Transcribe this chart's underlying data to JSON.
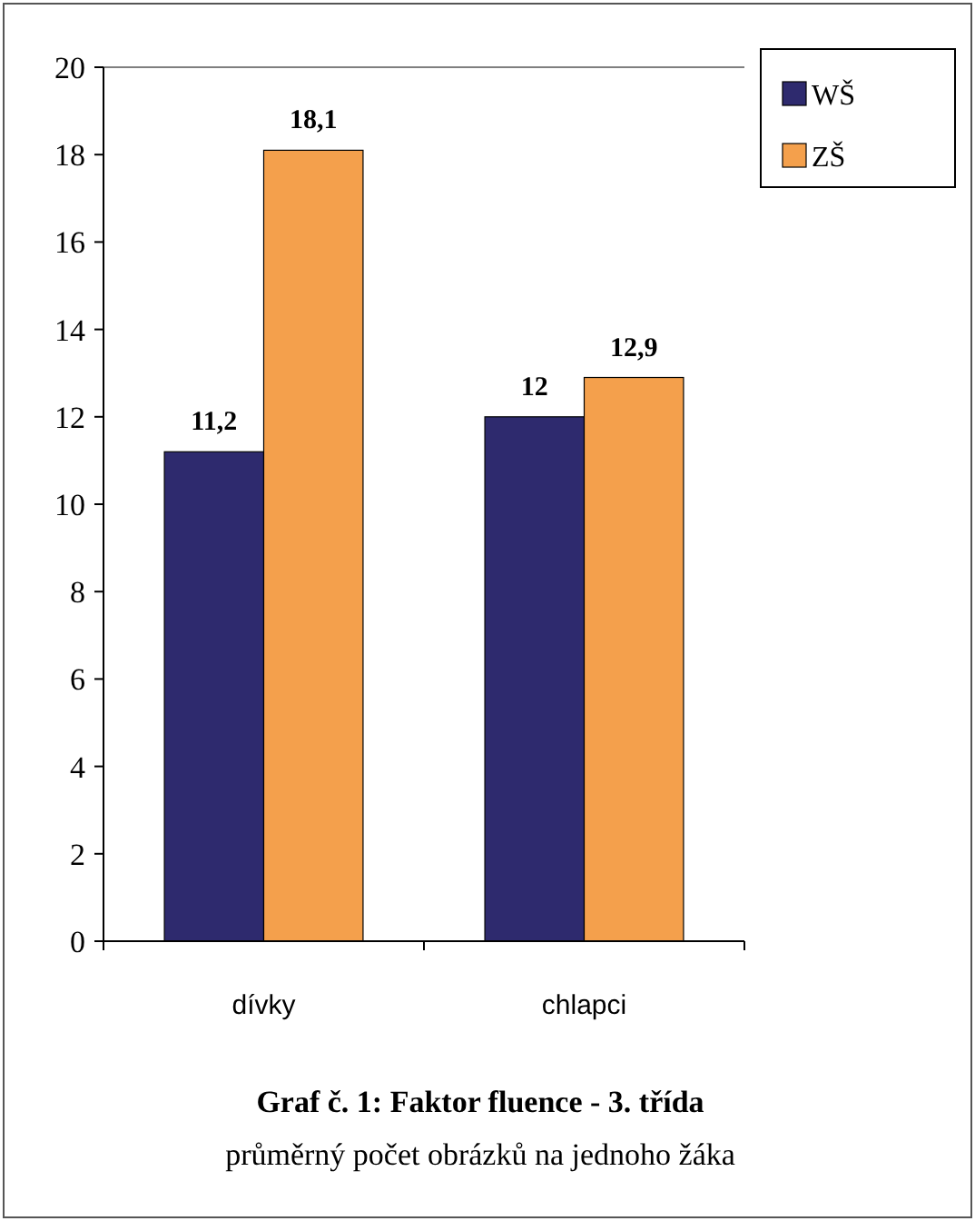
{
  "chart_data": {
    "type": "bar",
    "title": "Graf č. 1: Faktor fluence - 3. třída",
    "subtitle": "průměrný počet obrázků na jednoho žáka",
    "categories": [
      "dívky",
      "chlapci"
    ],
    "series": [
      {
        "name": "WŠ",
        "color": "#2e2a6e",
        "values": [
          11.2,
          12
        ],
        "value_labels": [
          "11,2",
          "12"
        ]
      },
      {
        "name": "ZŠ",
        "color": "#f4a04c",
        "values": [
          18.1,
          12.9
        ],
        "value_labels": [
          "18,1",
          "12,9"
        ]
      }
    ],
    "ylim": [
      0,
      20
    ],
    "yticks": [
      0,
      2,
      4,
      6,
      8,
      10,
      12,
      14,
      16,
      18,
      20
    ],
    "grid": false,
    "legend": "right"
  }
}
